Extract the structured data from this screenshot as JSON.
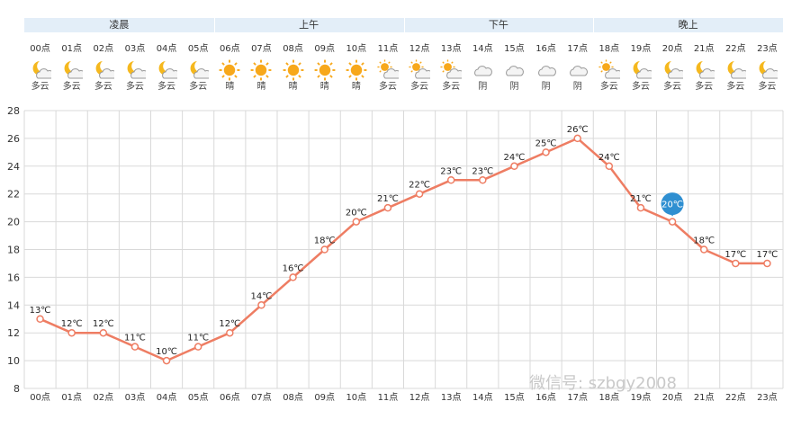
{
  "periods": [
    {
      "label": "凌晨",
      "start": 0,
      "end": 6
    },
    {
      "label": "上午",
      "start": 6,
      "end": 12
    },
    {
      "label": "下午",
      "start": 12,
      "end": 18
    },
    {
      "label": "晚上",
      "start": 18,
      "end": 24
    }
  ],
  "hours": [
    {
      "label": "00点",
      "weather": "多云",
      "icon": "partly-cloudy-night-icon"
    },
    {
      "label": "01点",
      "weather": "多云",
      "icon": "partly-cloudy-night-icon"
    },
    {
      "label": "02点",
      "weather": "多云",
      "icon": "partly-cloudy-night-icon"
    },
    {
      "label": "03点",
      "weather": "多云",
      "icon": "partly-cloudy-night-icon"
    },
    {
      "label": "04点",
      "weather": "多云",
      "icon": "partly-cloudy-night-icon"
    },
    {
      "label": "05点",
      "weather": "多云",
      "icon": "partly-cloudy-night-icon"
    },
    {
      "label": "06点",
      "weather": "晴",
      "icon": "sun-icon"
    },
    {
      "label": "07点",
      "weather": "晴",
      "icon": "sun-icon"
    },
    {
      "label": "08点",
      "weather": "晴",
      "icon": "sun-icon"
    },
    {
      "label": "09点",
      "weather": "晴",
      "icon": "sun-icon"
    },
    {
      "label": "10点",
      "weather": "晴",
      "icon": "sun-icon"
    },
    {
      "label": "11点",
      "weather": "多云",
      "icon": "partly-cloudy-day-icon"
    },
    {
      "label": "12点",
      "weather": "多云",
      "icon": "partly-cloudy-day-icon"
    },
    {
      "label": "13点",
      "weather": "多云",
      "icon": "partly-cloudy-day-icon"
    },
    {
      "label": "14点",
      "weather": "阴",
      "icon": "cloud-icon"
    },
    {
      "label": "15点",
      "weather": "阴",
      "icon": "cloud-icon"
    },
    {
      "label": "16点",
      "weather": "阴",
      "icon": "cloud-icon"
    },
    {
      "label": "17点",
      "weather": "阴",
      "icon": "cloud-icon"
    },
    {
      "label": "18点",
      "weather": "多云",
      "icon": "partly-cloudy-day-icon"
    },
    {
      "label": "19点",
      "weather": "多云",
      "icon": "partly-cloudy-night-icon"
    },
    {
      "label": "20点",
      "weather": "多云",
      "icon": "partly-cloudy-night-icon"
    },
    {
      "label": "21点",
      "weather": "多云",
      "icon": "partly-cloudy-night-icon"
    },
    {
      "label": "22点",
      "weather": "多云",
      "icon": "partly-cloudy-night-icon"
    },
    {
      "label": "23点",
      "weather": "多云",
      "icon": "partly-cloudy-night-icon"
    }
  ],
  "chart_data": {
    "type": "line",
    "title": "",
    "xlabel": "",
    "ylabel": "",
    "categories": [
      "00点",
      "01点",
      "02点",
      "03点",
      "04点",
      "05点",
      "06点",
      "07点",
      "08点",
      "09点",
      "10点",
      "11点",
      "12点",
      "13点",
      "14点",
      "15点",
      "16点",
      "17点",
      "18点",
      "19点",
      "20点",
      "21点",
      "22点",
      "23点"
    ],
    "series": [
      {
        "values": [
          13,
          12,
          12,
          11,
          10,
          11,
          12,
          14,
          16,
          18,
          20,
          21,
          22,
          23,
          23,
          24,
          25,
          26,
          24,
          21,
          20,
          18,
          17,
          17
        ]
      }
    ],
    "point_labels": [
      "13℃",
      "12℃",
      "12℃",
      "11℃",
      "10℃",
      "11℃",
      "12℃",
      "14℃",
      "16℃",
      "18℃",
      "20℃",
      "21℃",
      "22℃",
      "23℃",
      "23℃",
      "24℃",
      "25℃",
      "26℃",
      "24℃",
      "21℃",
      "20℃",
      "18℃",
      "17℃",
      "17℃"
    ],
    "yticks": [
      "8",
      "10",
      "12",
      "14",
      "16",
      "18",
      "20",
      "22",
      "24",
      "26",
      "28"
    ],
    "ylim": [
      8,
      28
    ],
    "grid": true,
    "legend": "none",
    "highlighted_index": 20,
    "colors": {
      "line": "#ee7d63",
      "highlight": "#2f8fd1",
      "grid": "#d9d9d9"
    }
  },
  "watermark": "微信号: szbgy2008"
}
